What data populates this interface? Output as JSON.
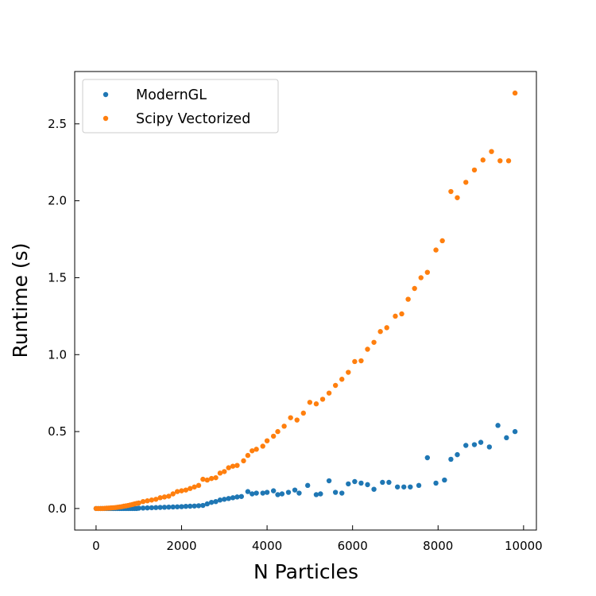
{
  "chart_data": {
    "type": "scatter",
    "xlabel": "N Particles",
    "ylabel": "Runtime (s)",
    "xlim": [
      -500,
      10300
    ],
    "ylim": [
      -0.14,
      2.84
    ],
    "x_ticks": [
      0,
      2000,
      4000,
      6000,
      8000,
      10000
    ],
    "x_tick_labels": [
      "0",
      "2000",
      "4000",
      "6000",
      "8000",
      "10000"
    ],
    "y_ticks": [
      0.0,
      0.5,
      1.0,
      1.5,
      2.0,
      2.5
    ],
    "y_tick_labels": [
      "0.0",
      "0.5",
      "1.0",
      "1.5",
      "2.0",
      "2.5"
    ],
    "grid": false,
    "legend_position": "top-left",
    "series": [
      {
        "name": "ModernGL",
        "color": "#1f77b4",
        "points": [
          [
            0,
            0.0
          ],
          [
            50,
            0.0
          ],
          [
            100,
            0.0
          ],
          [
            150,
            0.0
          ],
          [
            200,
            0.0
          ],
          [
            250,
            0.0
          ],
          [
            300,
            0.0
          ],
          [
            350,
            0.0
          ],
          [
            400,
            0.0
          ],
          [
            450,
            0.0
          ],
          [
            500,
            0.0
          ],
          [
            550,
            0.0
          ],
          [
            600,
            0.0
          ],
          [
            650,
            0.0
          ],
          [
            700,
            0.0
          ],
          [
            750,
            0.0
          ],
          [
            800,
            0.0
          ],
          [
            850,
            0.0
          ],
          [
            900,
            0.0
          ],
          [
            950,
            0.0
          ],
          [
            1000,
            0.002
          ],
          [
            1100,
            0.003
          ],
          [
            1200,
            0.004
          ],
          [
            1300,
            0.005
          ],
          [
            1400,
            0.006
          ],
          [
            1500,
            0.007
          ],
          [
            1600,
            0.008
          ],
          [
            1700,
            0.009
          ],
          [
            1800,
            0.01
          ],
          [
            1900,
            0.011
          ],
          [
            2000,
            0.012
          ],
          [
            2100,
            0.014
          ],
          [
            2200,
            0.015
          ],
          [
            2300,
            0.016
          ],
          [
            2400,
            0.018
          ],
          [
            2500,
            0.02
          ],
          [
            2600,
            0.03
          ],
          [
            2700,
            0.04
          ],
          [
            2800,
            0.045
          ],
          [
            2900,
            0.055
          ],
          [
            3000,
            0.06
          ],
          [
            3100,
            0.065
          ],
          [
            3200,
            0.07
          ],
          [
            3300,
            0.075
          ],
          [
            3400,
            0.078
          ],
          [
            3550,
            0.11
          ],
          [
            3650,
            0.095
          ],
          [
            3750,
            0.1
          ],
          [
            3900,
            0.1
          ],
          [
            4000,
            0.105
          ],
          [
            4150,
            0.115
          ],
          [
            4250,
            0.09
          ],
          [
            4350,
            0.095
          ],
          [
            4500,
            0.105
          ],
          [
            4650,
            0.12
          ],
          [
            4750,
            0.1
          ],
          [
            4950,
            0.15
          ],
          [
            5150,
            0.09
          ],
          [
            5250,
            0.095
          ],
          [
            5450,
            0.18
          ],
          [
            5600,
            0.105
          ],
          [
            5750,
            0.1
          ],
          [
            5900,
            0.16
          ],
          [
            6050,
            0.175
          ],
          [
            6200,
            0.165
          ],
          [
            6350,
            0.155
          ],
          [
            6500,
            0.125
          ],
          [
            6700,
            0.17
          ],
          [
            6850,
            0.17
          ],
          [
            7050,
            0.14
          ],
          [
            7200,
            0.14
          ],
          [
            7350,
            0.14
          ],
          [
            7550,
            0.15
          ],
          [
            7750,
            0.33
          ],
          [
            7950,
            0.165
          ],
          [
            8150,
            0.185
          ],
          [
            8300,
            0.32
          ],
          [
            8450,
            0.35
          ],
          [
            8650,
            0.41
          ],
          [
            8850,
            0.415
          ],
          [
            9000,
            0.43
          ],
          [
            9200,
            0.4
          ],
          [
            9400,
            0.54
          ],
          [
            9600,
            0.46
          ],
          [
            9800,
            0.5
          ]
        ]
      },
      {
        "name": "Scipy Vectorized",
        "color": "#ff7f0e",
        "points": [
          [
            0,
            0.0
          ],
          [
            50,
            0.0
          ],
          [
            100,
            0.0
          ],
          [
            150,
            0.0
          ],
          [
            200,
            0.001
          ],
          [
            250,
            0.002
          ],
          [
            300,
            0.003
          ],
          [
            350,
            0.004
          ],
          [
            400,
            0.005
          ],
          [
            450,
            0.006
          ],
          [
            500,
            0.008
          ],
          [
            550,
            0.01
          ],
          [
            600,
            0.012
          ],
          [
            650,
            0.015
          ],
          [
            700,
            0.017
          ],
          [
            750,
            0.02
          ],
          [
            800,
            0.023
          ],
          [
            850,
            0.026
          ],
          [
            900,
            0.03
          ],
          [
            950,
            0.033
          ],
          [
            1000,
            0.036
          ],
          [
            1100,
            0.045
          ],
          [
            1200,
            0.05
          ],
          [
            1300,
            0.055
          ],
          [
            1400,
            0.06
          ],
          [
            1500,
            0.07
          ],
          [
            1600,
            0.075
          ],
          [
            1700,
            0.08
          ],
          [
            1800,
            0.095
          ],
          [
            1900,
            0.11
          ],
          [
            2000,
            0.115
          ],
          [
            2100,
            0.12
          ],
          [
            2200,
            0.13
          ],
          [
            2300,
            0.14
          ],
          [
            2400,
            0.15
          ],
          [
            2500,
            0.19
          ],
          [
            2600,
            0.185
          ],
          [
            2700,
            0.195
          ],
          [
            2800,
            0.2
          ],
          [
            2900,
            0.23
          ],
          [
            3000,
            0.24
          ],
          [
            3100,
            0.265
          ],
          [
            3200,
            0.275
          ],
          [
            3300,
            0.28
          ],
          [
            3450,
            0.31
          ],
          [
            3550,
            0.345
          ],
          [
            3650,
            0.375
          ],
          [
            3750,
            0.385
          ],
          [
            3900,
            0.405
          ],
          [
            4000,
            0.44
          ],
          [
            4150,
            0.47
          ],
          [
            4250,
            0.5
          ],
          [
            4400,
            0.535
          ],
          [
            4550,
            0.59
          ],
          [
            4700,
            0.575
          ],
          [
            4850,
            0.62
          ],
          [
            5000,
            0.69
          ],
          [
            5150,
            0.68
          ],
          [
            5300,
            0.71
          ],
          [
            5450,
            0.75
          ],
          [
            5600,
            0.8
          ],
          [
            5750,
            0.84
          ],
          [
            5900,
            0.885
          ],
          [
            6050,
            0.955
          ],
          [
            6200,
            0.96
          ],
          [
            6350,
            1.035
          ],
          [
            6500,
            1.08
          ],
          [
            6650,
            1.15
          ],
          [
            6800,
            1.175
          ],
          [
            7000,
            1.25
          ],
          [
            7150,
            1.265
          ],
          [
            7300,
            1.36
          ],
          [
            7450,
            1.43
          ],
          [
            7600,
            1.5
          ],
          [
            7750,
            1.535
          ],
          [
            7950,
            1.68
          ],
          [
            8100,
            1.74
          ],
          [
            8300,
            2.06
          ],
          [
            8450,
            2.02
          ],
          [
            8650,
            2.12
          ],
          [
            8850,
            2.2
          ],
          [
            9050,
            2.265
          ],
          [
            9250,
            2.32
          ],
          [
            9450,
            2.26
          ],
          [
            9650,
            2.26
          ],
          [
            9800,
            2.7
          ]
        ]
      }
    ]
  }
}
